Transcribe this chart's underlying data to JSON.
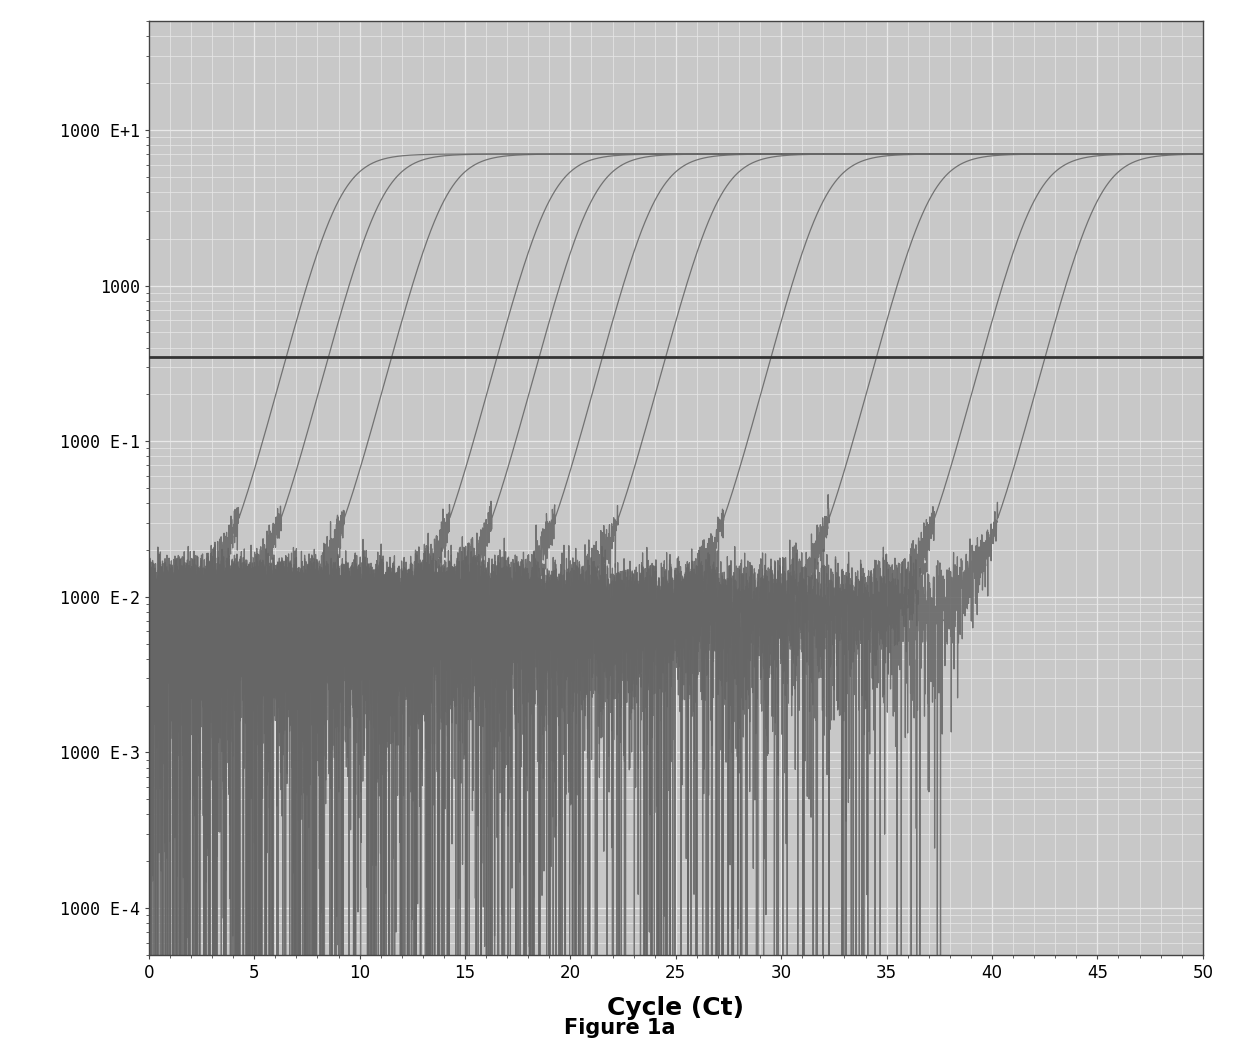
{
  "title": "Figure 1a",
  "xlabel": "Cycle (Ct)",
  "xlim": [
    0,
    50
  ],
  "xticks": [
    0,
    5,
    10,
    15,
    20,
    25,
    30,
    35,
    40,
    45,
    50
  ],
  "ytick_labels": [
    "1000 E-4",
    "1000 E-3",
    "1000 E-2",
    "1000 E-1",
    "1000",
    "1000 E+1"
  ],
  "ytick_values": [
    0.0001,
    0.001,
    0.01,
    0.1,
    1.0,
    10.0
  ],
  "threshold_y": 0.35,
  "curve_color": "#666666",
  "threshold_color": "#333333",
  "background_color": "#c8c8c8",
  "grid_color": "#e8e8e8",
  "curve_midpoints": [
    9,
    11,
    14,
    19,
    21,
    24,
    27,
    32,
    37,
    42,
    45
  ],
  "curve_steepness": 1.2,
  "y_max": 7.0,
  "y_baseline": 0.008,
  "noise_scale": 0.004,
  "figsize": [
    12.4,
    10.61
  ],
  "dpi": 100
}
